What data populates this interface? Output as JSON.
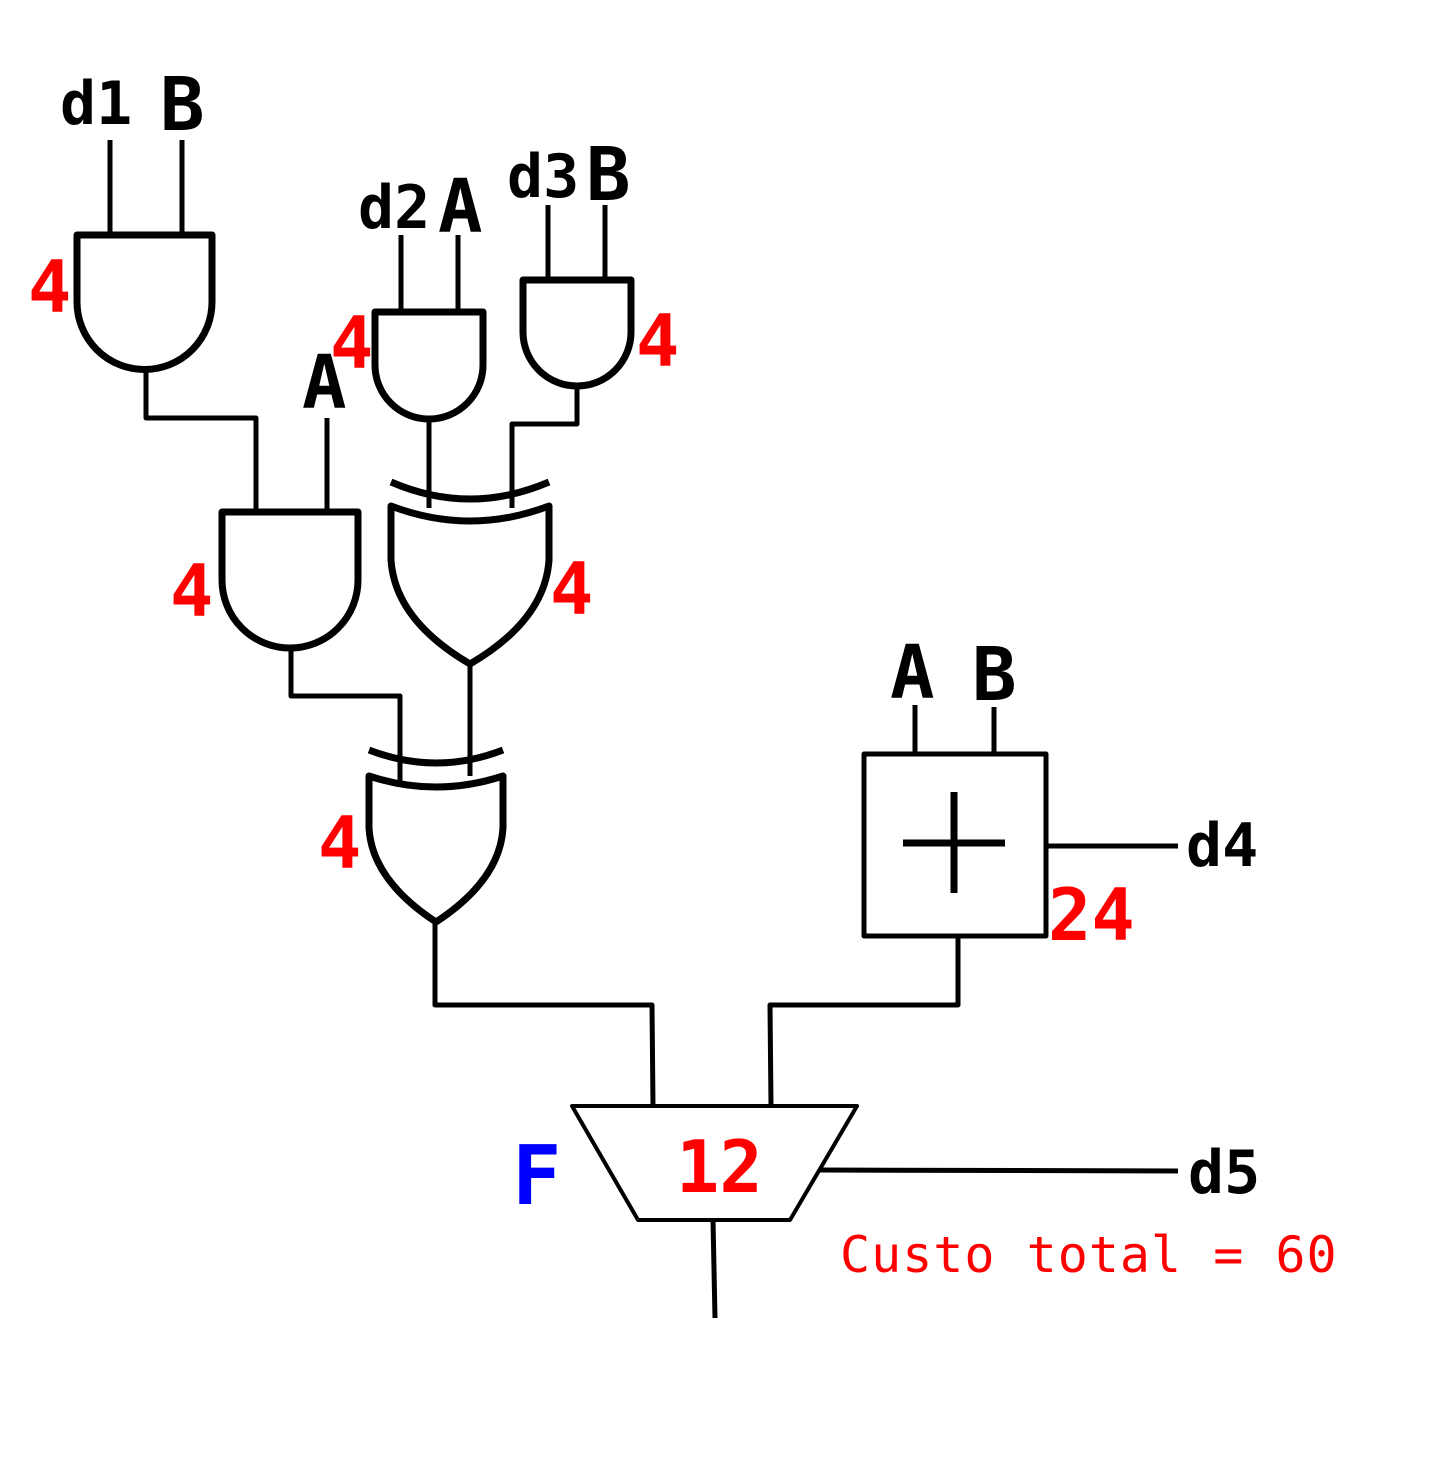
{
  "colors": {
    "wire": "#000000",
    "cost": "#ff0000",
    "select": "#0000ff",
    "background": "#ffffff"
  },
  "inputs": {
    "and1": [
      "d1",
      "B"
    ],
    "and2": [
      "d2",
      "A"
    ],
    "and3": [
      "d3",
      "B"
    ],
    "and4": "A",
    "adder": [
      "A",
      "B"
    ],
    "adder_side": "d4",
    "mux_side": "d5"
  },
  "costs": {
    "and1": "4",
    "and2": "4",
    "and3": "4",
    "and4": "4",
    "xor1": "4",
    "xor2": "4",
    "adder": "24",
    "mux": "12"
  },
  "adder_symbol": "plus",
  "mux_select": "F",
  "total_cost": "Custo total = 60"
}
